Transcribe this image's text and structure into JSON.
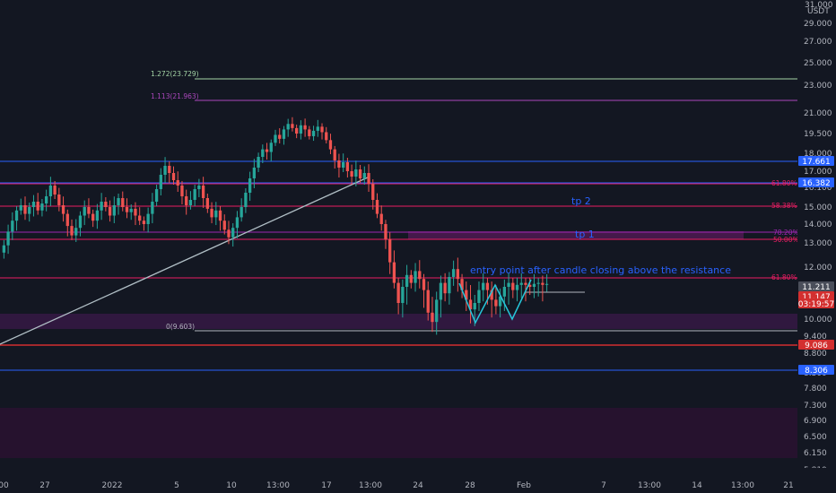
{
  "colors": {
    "background": "#131722",
    "candle_up": "#26a69a",
    "candle_down": "#ef5350",
    "blue_line": "#2962ff",
    "red_line": "#d32f2f",
    "purple_line": "#9c27b0",
    "pink_line": "#e91e63",
    "zone": "#3b1a4a",
    "cyan_pattern": "#26c6da",
    "trendline": "#b0bec5",
    "annotation_text": "#2962ff",
    "axis_text": "#b2b5be",
    "green_fib": "#a5d6a7"
  },
  "header": {
    "currency": "USDT",
    "top_partial": "31.000"
  },
  "chart_data": {
    "type": "candlestick",
    "y_ticks": [
      "29.000",
      "27.000",
      "25.000",
      "23.000",
      "21.000",
      "19.500",
      "18.000",
      "17.000",
      "16.100",
      "15.000",
      "14.000",
      "13.000",
      "12.000",
      "11.000",
      "10.000",
      "9.400",
      "8.800",
      "8.300",
      "7.800",
      "7.300",
      "6.900",
      "6.500",
      "6.150",
      "5.810"
    ],
    "x_ticks": [
      "00",
      "27",
      "2022",
      "5",
      "10",
      "13:00",
      "17",
      "13:00",
      "24",
      "28",
      "Feb",
      "7",
      "13:00",
      "14",
      "13:00",
      "21"
    ],
    "price_tags": [
      {
        "label": "17.661",
        "color": "#2962ff",
        "price": 17.661
      },
      {
        "label": "16.382",
        "color": "#2962ff",
        "price": 16.382
      },
      {
        "label": "11.211",
        "color": "#4a4e5a",
        "price": 11.211
      },
      {
        "label": "11.147",
        "color": "#d32f2f",
        "price": 11.147
      },
      {
        "label": "03:19:57",
        "color": "#d32f2f",
        "price": null
      },
      {
        "label": "9.086",
        "color": "#d32f2f",
        "price": 9.086
      },
      {
        "label": "8.306",
        "color": "#2962ff",
        "price": 8.306
      }
    ],
    "fib_levels": [
      {
        "label": "1.272(23.729)",
        "color": "#a5d6a7",
        "price": 23.729
      },
      {
        "label": "1.113(21.963)",
        "color": "#ab47bc",
        "price": 21.963
      },
      {
        "label": "0(9.603)",
        "color": "#b2b5be",
        "price": 9.603
      }
    ],
    "right_fibs": [
      {
        "label": "61.80%",
        "color": "#e91e63",
        "price": 16.3
      },
      {
        "label": "58.38%",
        "color": "#e91e63",
        "price": 15.0
      },
      {
        "label": "78.20%",
        "color": "#9c27b0",
        "price": 13.6
      },
      {
        "label": "50.00%",
        "color": "#e91e63",
        "price": 13.35
      },
      {
        "label": "61.80%",
        "color": "#e91e63",
        "price": 11.5
      }
    ],
    "annotations": [
      {
        "text": "tp 2"
      },
      {
        "text": "tp 1"
      },
      {
        "text": "entry point after candle closing above the resistance"
      }
    ],
    "zones": [
      {
        "from": 9.75,
        "to": 10.3
      },
      {
        "from": 6.15,
        "to": 7.25
      }
    ],
    "ohlc_note": "candles approximated from the image",
    "candles_close": [
      12.9,
      13.6,
      14.2,
      14.8,
      15.1,
      14.6,
      15.0,
      15.3,
      14.8,
      15.2,
      15.6,
      16.2,
      15.7,
      15.1,
      14.6,
      13.9,
      13.4,
      13.8,
      14.5,
      15.0,
      14.6,
      14.2,
      14.8,
      15.3,
      15.0,
      14.5,
      15.1,
      15.5,
      15.0,
      14.7,
      14.9,
      14.5,
      14.2,
      14.0,
      14.6,
      15.3,
      16.0,
      16.8,
      17.3,
      16.9,
      16.5,
      16.2,
      15.6,
      15.1,
      15.4,
      16.0,
      16.2,
      15.5,
      14.9,
      14.4,
      14.8,
      14.2,
      13.7,
      13.3,
      13.8,
      14.4,
      15.0,
      15.8,
      16.6,
      17.2,
      17.8,
      18.3,
      18.1,
      18.8,
      19.4,
      19.1,
      19.8,
      20.2,
      19.9,
      19.5,
      20.1,
      19.8,
      19.3,
      19.7,
      20.0,
      19.6,
      19.0,
      18.3,
      17.6,
      17.2,
      17.5,
      17.0,
      16.7,
      17.1,
      16.6,
      16.9,
      16.3,
      15.4,
      14.6,
      14.0,
      13.2,
      12.2,
      11.2,
      10.5,
      11.0,
      11.6,
      11.2,
      11.8,
      11.4,
      10.9,
      10.2,
      9.9,
      10.6,
      11.2,
      10.8,
      11.5,
      11.9,
      11.4,
      10.9,
      10.6,
      10.3,
      10.5,
      10.9,
      11.2,
      10.9,
      10.6,
      10.4,
      10.7,
      11.0,
      11.2,
      10.9,
      11.1,
      11.2,
      11.1,
      11.0,
      11.15,
      11.2,
      11.1,
      11.147
    ]
  }
}
